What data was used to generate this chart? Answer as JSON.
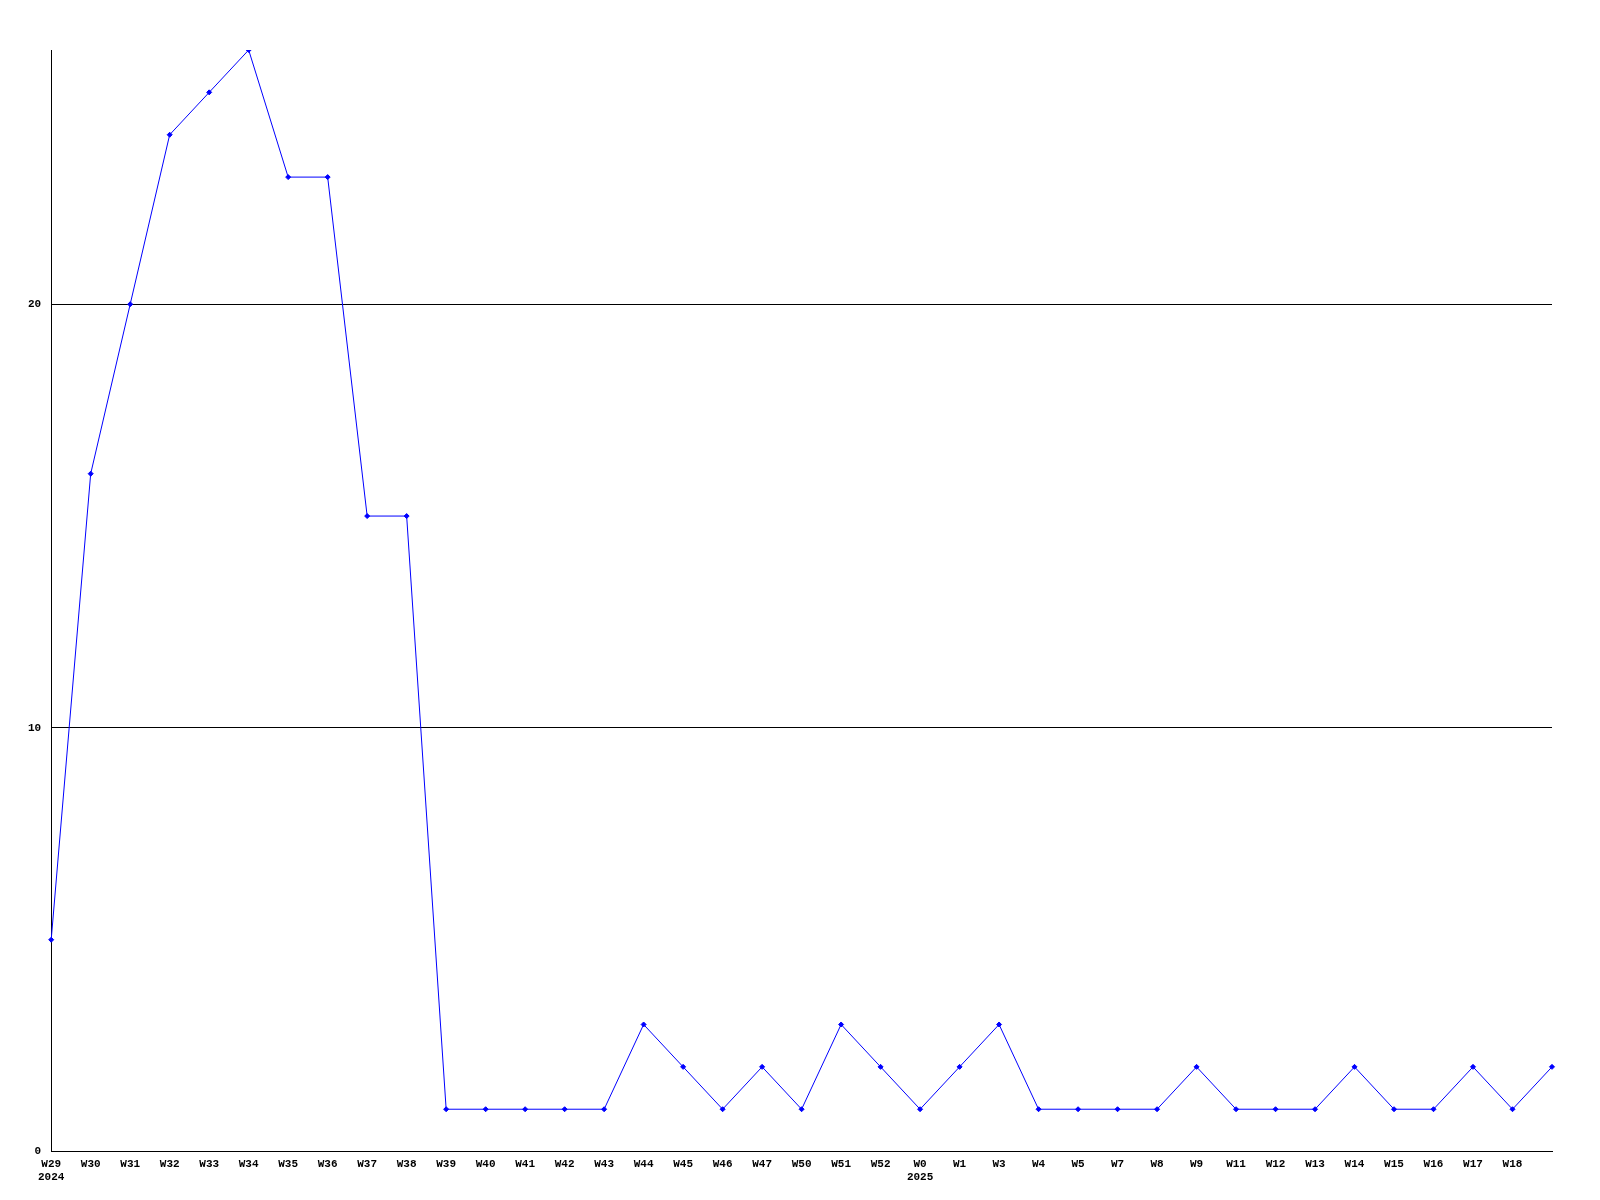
{
  "chart_data": {
    "type": "line",
    "categories": [
      "W29\n2024",
      "W30",
      "W31",
      "W32",
      "W33",
      "W34",
      "W35",
      "W36",
      "W37",
      "W38",
      "W39",
      "W40",
      "W41",
      "W42",
      "W43",
      "W44",
      "W45",
      "W46",
      "W47",
      "W50",
      "W51",
      "W52",
      "W0\n2025",
      "W1",
      "W3",
      "W4",
      "W5",
      "W7",
      "W8",
      "W9",
      "W11",
      "W12",
      "W13",
      "W14",
      "W15",
      "W16",
      "W17",
      "W18",
      null
    ],
    "series": [
      {
        "color": "#0000ff",
        "values": [
          5,
          16,
          20,
          24,
          25,
          26,
          23,
          23,
          15,
          15,
          1,
          1,
          1,
          1,
          1,
          3,
          2,
          1,
          2,
          1,
          3,
          2,
          1,
          2,
          3,
          1,
          1,
          1,
          1,
          2,
          1,
          1,
          1,
          2,
          1,
          1,
          2,
          1,
          2
        ]
      }
    ],
    "ylim": [
      0,
      26
    ],
    "yticks": [
      0,
      10,
      20
    ],
    "grid": "y",
    "marker": "diamond",
    "line_style": "solid",
    "legend": false
  }
}
